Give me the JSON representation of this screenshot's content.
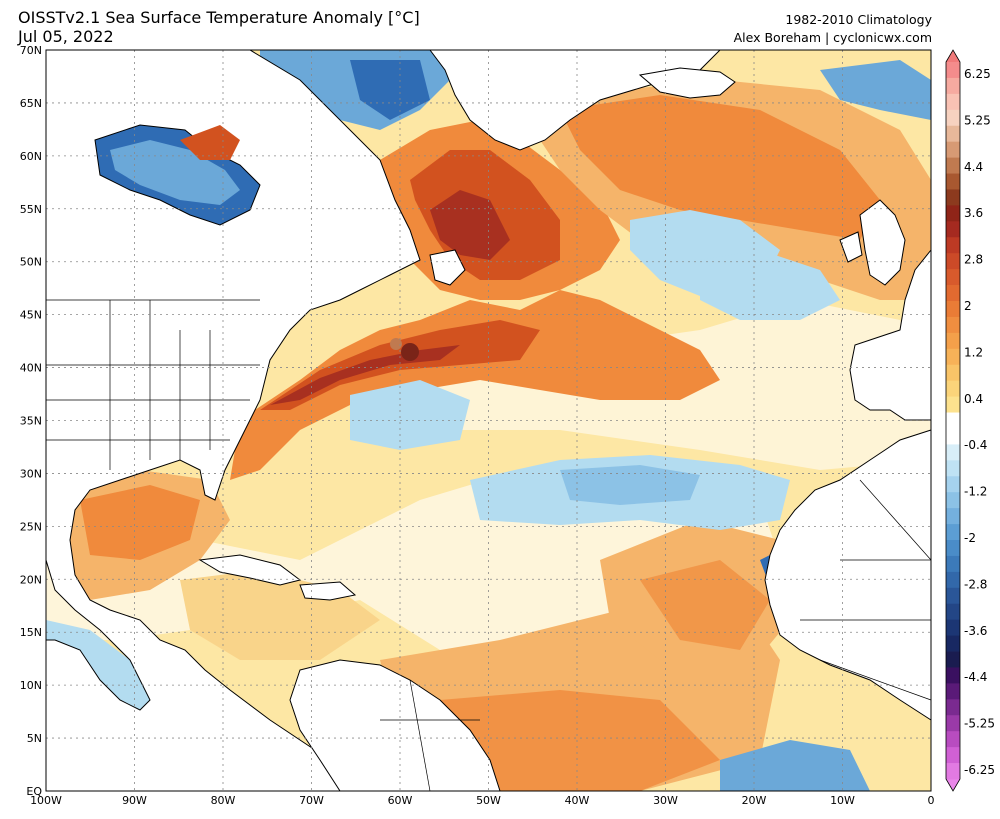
{
  "header": {
    "title": "OISSTv2.1 Sea Surface Temperature Anomaly [°C]",
    "date": "Jul 05, 2022",
    "climatology": "1982-2010 Climatology",
    "author": "Alex Boreham | cyclonicwx.com"
  },
  "map": {
    "lat_labels": [
      "70N",
      "65N",
      "60N",
      "55N",
      "50N",
      "45N",
      "40N",
      "35N",
      "30N",
      "25N",
      "20N",
      "15N",
      "10N",
      "5N",
      "EQ"
    ],
    "lon_labels": [
      "100W",
      "90W",
      "80W",
      "70W",
      "60W",
      "50W",
      "40W",
      "30W",
      "20W",
      "10W",
      "0"
    ],
    "extent": {
      "lon": [
        -100,
        0
      ],
      "lat": [
        0,
        70
      ]
    },
    "colors": {
      "land": "#ffffff",
      "neutral": "#ffffff",
      "weak_warm": "#f9dd8c",
      "warm": "#f5b46a",
      "warmer": "#f08a3c",
      "hot": "#d2521f",
      "very_hot": "#a83020",
      "weak_cool": "#b3dcf0",
      "cool": "#6ba8d8",
      "cold": "#2f6cb4"
    }
  },
  "colorbar": {
    "labels": [
      "6.25",
      "5.25",
      "4.4",
      "3.6",
      "2.8",
      "2",
      "1.2",
      "0.4",
      "-0.4",
      "-1.2",
      "-2",
      "-2.8",
      "-3.6",
      "-4.4",
      "-5.25",
      "-6.25"
    ],
    "colors": [
      "#f48c8c",
      "#f6aaa0",
      "#f9c2b4",
      "#f7d2c0",
      "#e8b89a",
      "#d79a74",
      "#c07a50",
      "#a85830",
      "#8c3a1e",
      "#8f2418",
      "#a52a20",
      "#bd3a24",
      "#cc4a28",
      "#d85a2c",
      "#e26a30",
      "#ea7c36",
      "#f08e40",
      "#f4a04a",
      "#f7b258",
      "#f9c468",
      "#fbd47a",
      "#fde28e",
      "#ffffff",
      "#ffffff",
      "#d8eef8",
      "#bfe2f4",
      "#a5d2ee",
      "#8cc2e6",
      "#74b0de",
      "#5c9ed4",
      "#4a8cc8",
      "#3c7aba",
      "#3268aa",
      "#2a5698",
      "#234686",
      "#1c3674",
      "#182862",
      "#1a1c50",
      "#3a1060",
      "#5a1a78",
      "#7a2a90",
      "#9a3aa8",
      "#b84cc0",
      "#d060d4",
      "#e27ae2"
    ]
  }
}
